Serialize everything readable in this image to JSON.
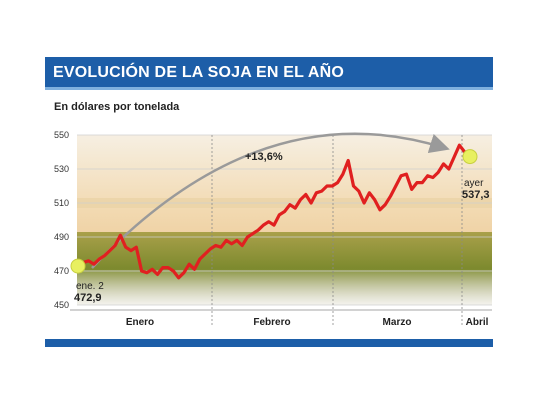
{
  "header": {
    "title": "EVOLUCIÓN DE LA SOJA EN EL AÑO"
  },
  "chart_data": {
    "type": "line",
    "title": "EVOLUCIÓN DE LA SOJA EN EL AÑO",
    "subtitle": "En dólares por tonelada",
    "ylim": [
      450,
      550
    ],
    "yticks": [
      450,
      470,
      490,
      510,
      530,
      550
    ],
    "grid": true,
    "months": [
      "Enero",
      "Febrero",
      "Marzo",
      "Abril"
    ],
    "series": [
      {
        "values": [
          472.9,
          475,
          476,
          474,
          477,
          479,
          482,
          485,
          491,
          484,
          482,
          484,
          470,
          469,
          471,
          468,
          472,
          472,
          470,
          466,
          469,
          474,
          471,
          477,
          480,
          483,
          485,
          484,
          488,
          486,
          488,
          485,
          490,
          492,
          494,
          497,
          499,
          497,
          503,
          505,
          509,
          507,
          512,
          515,
          510,
          516,
          517,
          520,
          520,
          522,
          527,
          535,
          520,
          517,
          510,
          516,
          512,
          506,
          509,
          514,
          520,
          526,
          527,
          518,
          522,
          522,
          526,
          525,
          528,
          533,
          530,
          537,
          544,
          540,
          537.3
        ]
      }
    ],
    "annotations": {
      "change": "+13,6%",
      "start_label": "ene. 2",
      "start_value": "472,9",
      "end_label": "ayer",
      "end_value": "537,3"
    },
    "colors": {
      "line": "#e02020",
      "marker": "#e8f060",
      "arc": "#9a9a9a"
    }
  }
}
